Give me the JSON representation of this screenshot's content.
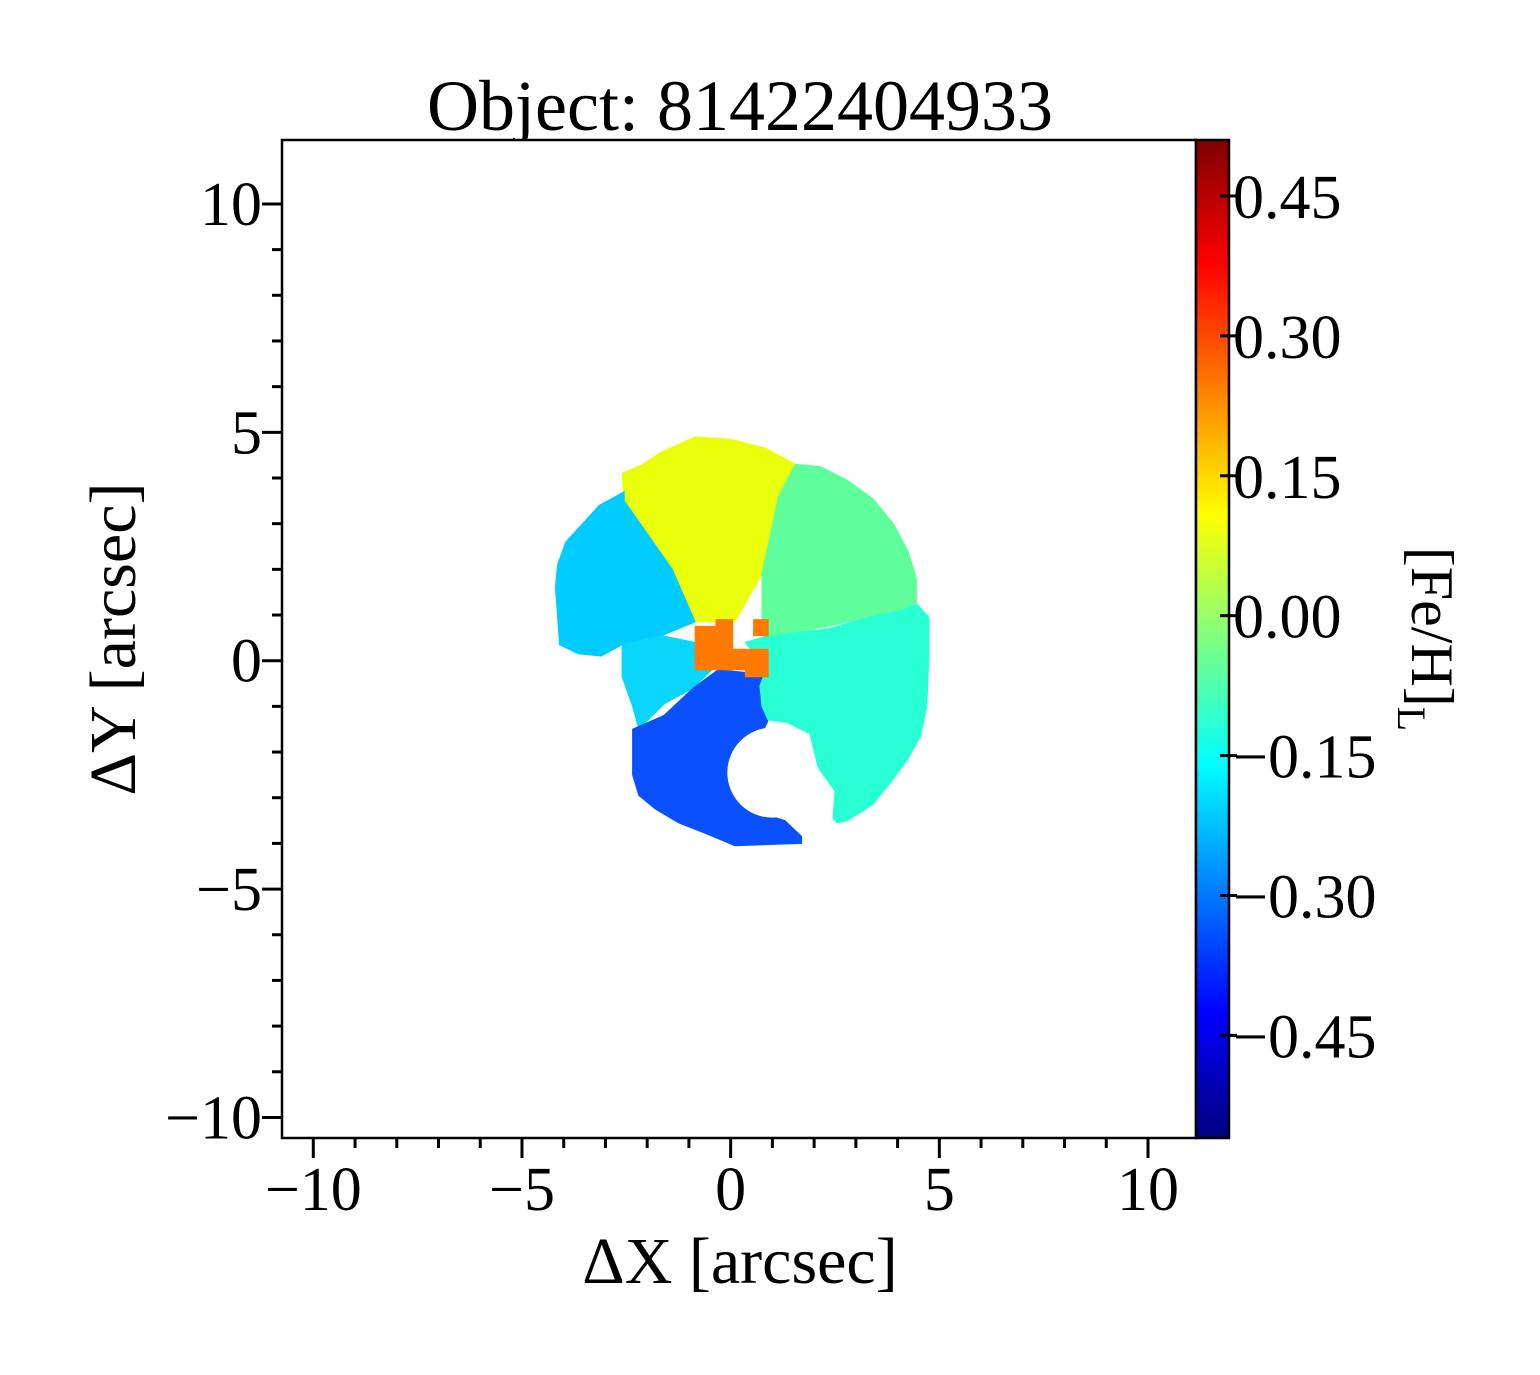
{
  "chart_data": {
    "type": "heatmap",
    "title": "Object: 81422404933",
    "xlabel": "ΔX [arcsec]",
    "ylabel": "ΔY [arcsec]",
    "xlim": [
      -10.75,
      11.15
    ],
    "ylim": [
      -10.45,
      11.4
    ],
    "xticks": [
      -10,
      -5,
      0,
      5,
      10
    ],
    "xtick_labels": [
      "−10",
      "−5",
      "0",
      "5",
      "10"
    ],
    "yticks": [
      -10,
      -5,
      0,
      5,
      10
    ],
    "ytick_labels": [
      "−10",
      "−5",
      "0",
      "5",
      "10"
    ],
    "colorbar": {
      "label": "[Fe/H]",
      "label_subscript": "L",
      "vmin": -0.56,
      "vmax": 0.51,
      "colormap": "jet",
      "ticks": [
        0.45,
        0.3,
        0.15,
        0.0,
        -0.15,
        -0.3,
        -0.45
      ],
      "tick_labels": [
        "0.45",
        "0.30",
        "0.15",
        "0.00",
        "−0.15",
        "−0.30",
        "−0.45"
      ]
    },
    "missing_region": {
      "center": [
        1.0,
        -2.45
      ],
      "radius": 1.08
    },
    "bins": [
      {
        "name": "north",
        "value": 0.1,
        "color": "#eaff0a",
        "polygon": [
          [
            -0.85,
            0.85
          ],
          [
            -1.4,
            2.0
          ],
          [
            -2.55,
            3.5
          ],
          [
            -2.6,
            4.1
          ],
          [
            -2.1,
            4.3
          ],
          [
            -1.7,
            4.55
          ],
          [
            -0.85,
            4.9
          ],
          [
            0.0,
            4.85
          ],
          [
            0.85,
            4.65
          ],
          [
            1.55,
            4.3
          ],
          [
            1.15,
            3.6
          ],
          [
            0.75,
            1.9
          ],
          [
            0.1,
            0.85
          ]
        ]
      },
      {
        "name": "west",
        "value": -0.22,
        "color": "#00ccff",
        "polygon": [
          [
            -2.55,
            3.7
          ],
          [
            -3.15,
            3.4
          ],
          [
            -3.55,
            3.0
          ],
          [
            -3.95,
            2.6
          ],
          [
            -4.15,
            2.1
          ],
          [
            -4.2,
            1.6
          ],
          [
            -4.15,
            1.0
          ],
          [
            -4.1,
            0.35
          ],
          [
            -3.65,
            0.15
          ],
          [
            -3.1,
            0.1
          ],
          [
            -2.6,
            0.35
          ],
          [
            -1.65,
            0.55
          ],
          [
            -0.85,
            0.85
          ],
          [
            -1.4,
            2.0
          ],
          [
            -2.55,
            3.5
          ]
        ]
      },
      {
        "name": "south-west",
        "value": -0.19,
        "color": "#0ad6fb",
        "polygon": [
          [
            -2.6,
            0.35
          ],
          [
            -1.65,
            0.55
          ],
          [
            -0.85,
            0.4
          ],
          [
            -0.45,
            -0.2
          ],
          [
            -0.9,
            -0.6
          ],
          [
            -1.6,
            -0.95
          ],
          [
            -2.2,
            -1.5
          ],
          [
            -2.35,
            -1.0
          ],
          [
            -2.6,
            -0.35
          ],
          [
            -2.6,
            0.1
          ]
        ]
      },
      {
        "name": "south",
        "value": -0.36,
        "color": "#0a50ff",
        "polygon": [
          [
            -0.3,
            -0.2
          ],
          [
            0.85,
            -0.3
          ],
          [
            0.9,
            -1.3
          ],
          [
            0.75,
            -1.6
          ],
          [
            0.7,
            -2.5
          ],
          [
            0.95,
            -3.4
          ],
          [
            1.3,
            -3.5
          ],
          [
            1.7,
            -3.85
          ],
          [
            1.7,
            -4.0
          ],
          [
            0.1,
            -4.05
          ],
          [
            -0.55,
            -3.8
          ],
          [
            -1.25,
            -3.55
          ],
          [
            -1.8,
            -3.25
          ],
          [
            -2.2,
            -2.95
          ],
          [
            -2.35,
            -2.5
          ],
          [
            -2.35,
            -1.5
          ],
          [
            -1.6,
            -1.2
          ],
          [
            -0.9,
            -0.6
          ]
        ]
      },
      {
        "name": "south-east",
        "value": -0.12,
        "color": "#29ffd4",
        "polygon": [
          [
            0.7,
            -0.55
          ],
          [
            0.85,
            -0.2
          ],
          [
            0.35,
            0.4
          ],
          [
            0.9,
            0.55
          ],
          [
            2.35,
            0.7
          ],
          [
            3.45,
            1.0
          ],
          [
            4.0,
            1.1
          ],
          [
            4.45,
            1.25
          ],
          [
            4.75,
            0.95
          ],
          [
            4.75,
            0.05
          ],
          [
            4.7,
            -1.0
          ],
          [
            4.55,
            -1.65
          ],
          [
            4.25,
            -2.15
          ],
          [
            3.85,
            -2.65
          ],
          [
            3.4,
            -3.15
          ],
          [
            2.8,
            -3.5
          ],
          [
            2.55,
            -3.55
          ],
          [
            2.45,
            -3.45
          ],
          [
            2.5,
            -2.85
          ],
          [
            2.1,
            -2.35
          ],
          [
            1.9,
            -1.6
          ],
          [
            1.35,
            -1.35
          ],
          [
            0.9,
            -1.3
          ],
          [
            0.75,
            -1.0
          ]
        ]
      },
      {
        "name": "north-east",
        "value": -0.05,
        "color": "#5eff9b",
        "polygon": [
          [
            0.75,
            1.9
          ],
          [
            1.15,
            3.6
          ],
          [
            1.55,
            4.3
          ],
          [
            2.15,
            4.25
          ],
          [
            2.8,
            3.95
          ],
          [
            3.4,
            3.55
          ],
          [
            3.9,
            3.0
          ],
          [
            4.25,
            2.4
          ],
          [
            4.45,
            1.8
          ],
          [
            4.45,
            1.25
          ],
          [
            4.0,
            1.1
          ],
          [
            3.45,
            1.0
          ],
          [
            2.35,
            0.75
          ],
          [
            1.7,
            0.65
          ],
          [
            0.9,
            0.55
          ],
          [
            0.75,
            0.9
          ]
        ]
      },
      {
        "name": "center",
        "value": 0.28,
        "color": "#ff7a00",
        "polygon": [
          [
            -0.85,
            0.75
          ],
          [
            -0.35,
            0.75
          ],
          [
            -0.35,
            0.9
          ],
          [
            0.05,
            0.9
          ],
          [
            0.05,
            0.25
          ],
          [
            0.9,
            0.25
          ],
          [
            0.9,
            -0.35
          ],
          [
            0.35,
            -0.35
          ],
          [
            0.35,
            -0.2
          ],
          [
            -0.85,
            -0.2
          ]
        ]
      },
      {
        "name": "center-east",
        "value": 0.28,
        "color": "#ff7a00",
        "polygon": [
          [
            0.55,
            0.9
          ],
          [
            0.9,
            0.9
          ],
          [
            0.9,
            0.55
          ],
          [
            0.55,
            0.55
          ]
        ]
      }
    ]
  }
}
